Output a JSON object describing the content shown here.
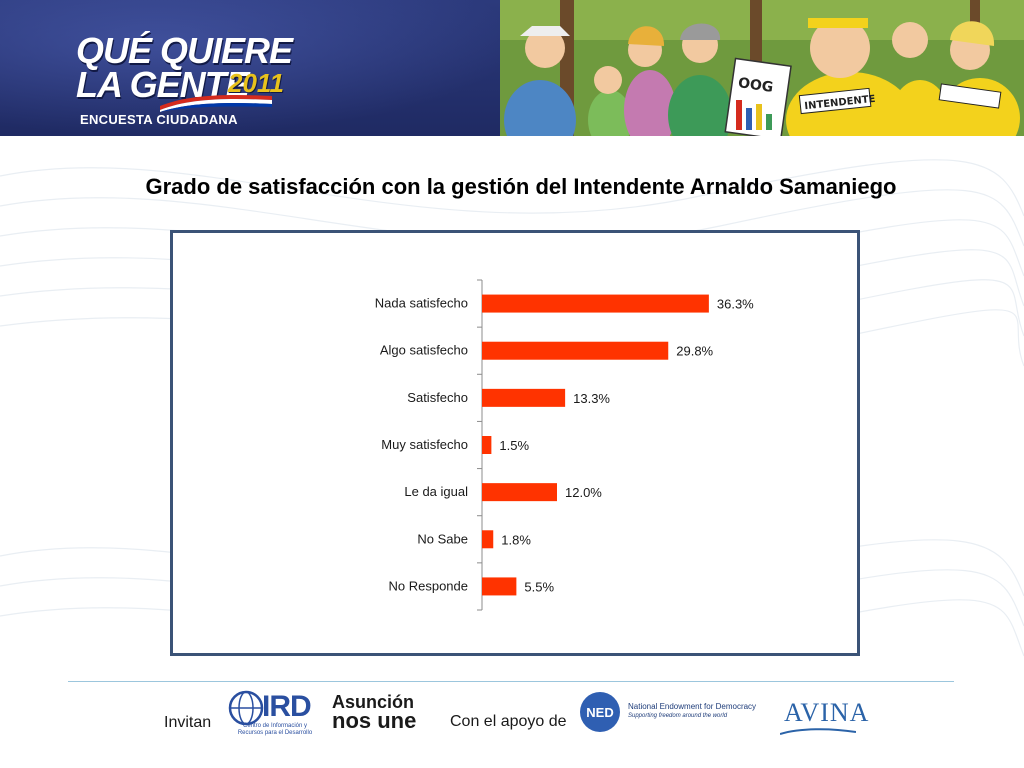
{
  "header": {
    "logo_line1": "QUÉ QUIERE",
    "logo_line2": "LA GENTE",
    "logo_year": "2011",
    "logo_subtitle": "ENCUESTA CIUDADANA"
  },
  "slide": {
    "title": "Grado de satisfacción con la gestión del Intendente Arnaldo Samaniego"
  },
  "chart_data": {
    "type": "bar",
    "orientation": "horizontal",
    "categories": [
      "Nada satisfecho",
      "Algo satisfecho",
      "Satisfecho",
      "Muy satisfecho",
      "Le da igual",
      "No Sabe",
      "No Responde"
    ],
    "values": [
      36.3,
      29.8,
      13.3,
      1.5,
      12.0,
      1.8,
      5.5
    ],
    "value_labels": [
      "36.3%",
      "29.8%",
      "13.3%",
      "1.5%",
      "12.0%",
      "1.8%",
      "5.5%"
    ],
    "unit": "%",
    "xlim": [
      0,
      40
    ],
    "grid": false,
    "bar_color": "#ff3300"
  },
  "footer": {
    "invitan": "Invitan",
    "ird_name": "IRD",
    "ird_subtitle": "Centro de Información y Recursos para el Desarrollo",
    "asuncion_line1": "Asunción",
    "asuncion_line2": "nos une",
    "apoyo": "Con el apoyo de",
    "ned_abbr": "NED",
    "ned_name": "National Endowment for Democracy",
    "ned_tagline": "Supporting freedom around the world",
    "avina": "AVINA"
  },
  "colors": {
    "banner": "#2c3a7c",
    "frame": "#3b5377",
    "bar": "#ff3300",
    "footer_line": "#9cc6dd"
  }
}
